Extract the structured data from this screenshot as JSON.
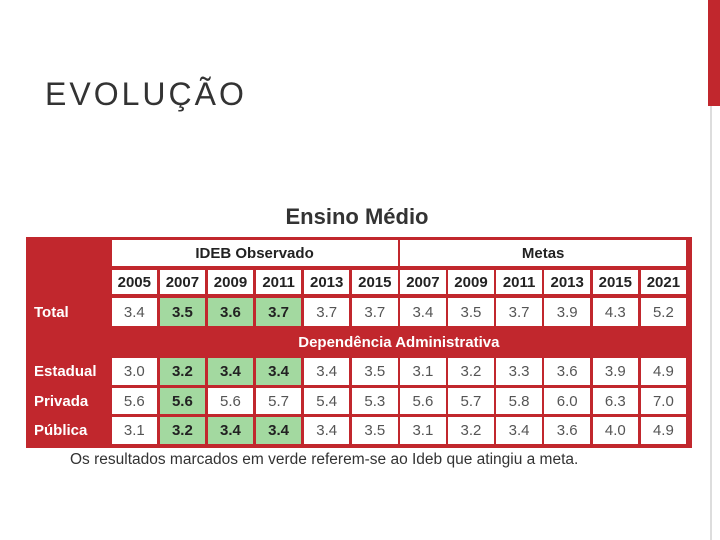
{
  "header": {
    "title": "EVOLUÇÃO"
  },
  "table": {
    "title": "Ensino Médio",
    "groups": [
      "IDEB Observado",
      "Metas"
    ],
    "years": [
      "2005",
      "2007",
      "2009",
      "2011",
      "2013",
      "2015",
      "2007",
      "2009",
      "2011",
      "2013",
      "2015",
      "2021"
    ],
    "section": "Dependência Administrativa",
    "rows": [
      {
        "label": "Total",
        "cells": [
          "3.4",
          "3.5",
          "3.6",
          "3.7",
          "3.7",
          "3.7",
          "3.4",
          "3.5",
          "3.7",
          "3.9",
          "4.3",
          "5.2"
        ],
        "highlight": [
          1,
          2,
          3
        ]
      },
      {
        "label": "Estadual",
        "cells": [
          "3.0",
          "3.2",
          "3.4",
          "3.4",
          "3.4",
          "3.5",
          "3.1",
          "3.2",
          "3.3",
          "3.6",
          "3.9",
          "4.9"
        ],
        "highlight": [
          1,
          2,
          3
        ]
      },
      {
        "label": "Privada",
        "cells": [
          "5.6",
          "5.6",
          "5.6",
          "5.7",
          "5.4",
          "5.3",
          "5.6",
          "5.7",
          "5.8",
          "6.0",
          "6.3",
          "7.0"
        ],
        "highlight": [
          1
        ]
      },
      {
        "label": "Pública",
        "cells": [
          "3.1",
          "3.2",
          "3.4",
          "3.4",
          "3.4",
          "3.5",
          "3.1",
          "3.2",
          "3.4",
          "3.6",
          "4.0",
          "4.9"
        ],
        "highlight": [
          1,
          2,
          3
        ]
      }
    ],
    "note": "Os resultados marcados em verde referem-se ao Ideb que atingiu a meta.",
    "frame_color": "#c1272d",
    "highlight_color": "#a3d9a0"
  }
}
